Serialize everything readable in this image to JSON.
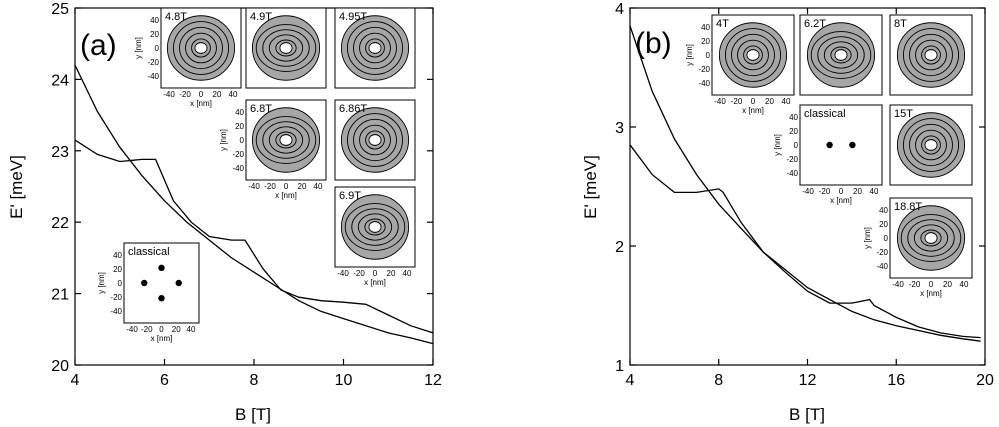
{
  "chart_data": [
    {
      "type": "line",
      "panel_label": "(a)",
      "xlabel": "B [T]",
      "ylabel": "E' [meV]",
      "xlim": [
        4,
        12
      ],
      "ylim": [
        20,
        25
      ],
      "xticks": [
        "4",
        "6",
        "8",
        "10",
        "12"
      ],
      "yticks": [
        "20",
        "21",
        "22",
        "23",
        "24",
        "25"
      ],
      "series": [
        {
          "x": [
            4.0,
            4.5,
            5.0,
            5.5,
            6.0,
            6.5,
            7.0,
            7.5,
            8.0,
            8.5,
            9.0,
            9.5,
            10.0,
            10.5,
            11.0,
            11.5,
            12.0
          ],
          "y": [
            24.2,
            23.55,
            23.05,
            22.65,
            22.3,
            22.0,
            21.75,
            21.5,
            21.3,
            21.1,
            20.9,
            20.75,
            20.65,
            20.55,
            20.45,
            20.38,
            20.3
          ]
        },
        {
          "x": [
            4.0,
            4.5,
            5.0,
            5.5,
            5.8,
            6.2,
            6.6,
            7.0,
            7.5,
            7.8,
            8.2,
            8.6,
            9.0,
            9.5,
            10.0,
            10.5,
            11.0,
            11.5,
            12.0
          ],
          "y": [
            23.15,
            22.95,
            22.85,
            22.88,
            22.88,
            22.3,
            22.0,
            21.8,
            21.75,
            21.75,
            21.35,
            21.05,
            20.95,
            20.9,
            20.88,
            20.85,
            20.7,
            20.55,
            20.45
          ]
        }
      ],
      "insets": [
        {
          "label": "4.8T",
          "kind": "contour"
        },
        {
          "label": "4.9T",
          "kind": "contour"
        },
        {
          "label": "4.95T",
          "kind": "contour"
        },
        {
          "label": "6.8T",
          "kind": "contour"
        },
        {
          "label": "6.86T",
          "kind": "contour"
        },
        {
          "label": "6.9T",
          "kind": "contour"
        },
        {
          "label": "classical",
          "kind": "points",
          "points": [
            [
              -25,
              0
            ],
            [
              25,
              0
            ],
            [
              0,
              22
            ],
            [
              0,
              -22
            ]
          ]
        }
      ],
      "inset_xlabel": "x [nm]",
      "inset_ylabel": "y [nm]",
      "inset_xticks": [
        "-40",
        "-20",
        "0",
        "20",
        "40"
      ],
      "inset_yticks": [
        "40",
        "20",
        "0",
        "-20",
        "-40"
      ]
    },
    {
      "type": "line",
      "panel_label": "(b)",
      "xlabel": "B [T]",
      "ylabel": "E' [meV]",
      "xlim": [
        4,
        20
      ],
      "ylim": [
        1,
        4
      ],
      "xticks": [
        "4",
        "8",
        "12",
        "16",
        "20"
      ],
      "yticks": [
        "1",
        "2",
        "3",
        "4"
      ],
      "series": [
        {
          "x": [
            4.0,
            5.0,
            6.0,
            7.0,
            8.0,
            9.0,
            10.0,
            11.0,
            12.0,
            13.0,
            14.0,
            15.0,
            16.0,
            17.0,
            18.0,
            19.0,
            19.8
          ],
          "y": [
            3.85,
            3.3,
            2.9,
            2.6,
            2.35,
            2.15,
            1.95,
            1.8,
            1.65,
            1.55,
            1.45,
            1.38,
            1.33,
            1.29,
            1.25,
            1.22,
            1.2
          ]
        },
        {
          "x": [
            4.0,
            5.0,
            6.0,
            6.3,
            7.0,
            8.0,
            8.2,
            9.0,
            10.0,
            11.0,
            12.0,
            13.0,
            14.0,
            14.8,
            15.0,
            16.0,
            17.0,
            18.0,
            19.0,
            19.8
          ],
          "y": [
            2.85,
            2.6,
            2.45,
            2.45,
            2.45,
            2.48,
            2.45,
            2.2,
            1.95,
            1.78,
            1.62,
            1.52,
            1.52,
            1.55,
            1.5,
            1.4,
            1.32,
            1.27,
            1.24,
            1.23
          ]
        }
      ],
      "insets": [
        {
          "label": "4T",
          "kind": "contour"
        },
        {
          "label": "6.2T",
          "kind": "contour"
        },
        {
          "label": "8T",
          "kind": "contour"
        },
        {
          "label": "classical",
          "kind": "points",
          "points": [
            [
              -15,
              0
            ],
            [
              15,
              0
            ]
          ]
        },
        {
          "label": "15T",
          "kind": "contour"
        },
        {
          "label": "18.8T",
          "kind": "contour"
        }
      ],
      "inset_xlabel": "x [nm]",
      "inset_ylabel": "y [nm]",
      "inset_xticks": [
        "-40",
        "-20",
        "0",
        "20",
        "40"
      ],
      "inset_yticks": [
        "40",
        "20",
        "0",
        "-20",
        "-40"
      ]
    }
  ]
}
